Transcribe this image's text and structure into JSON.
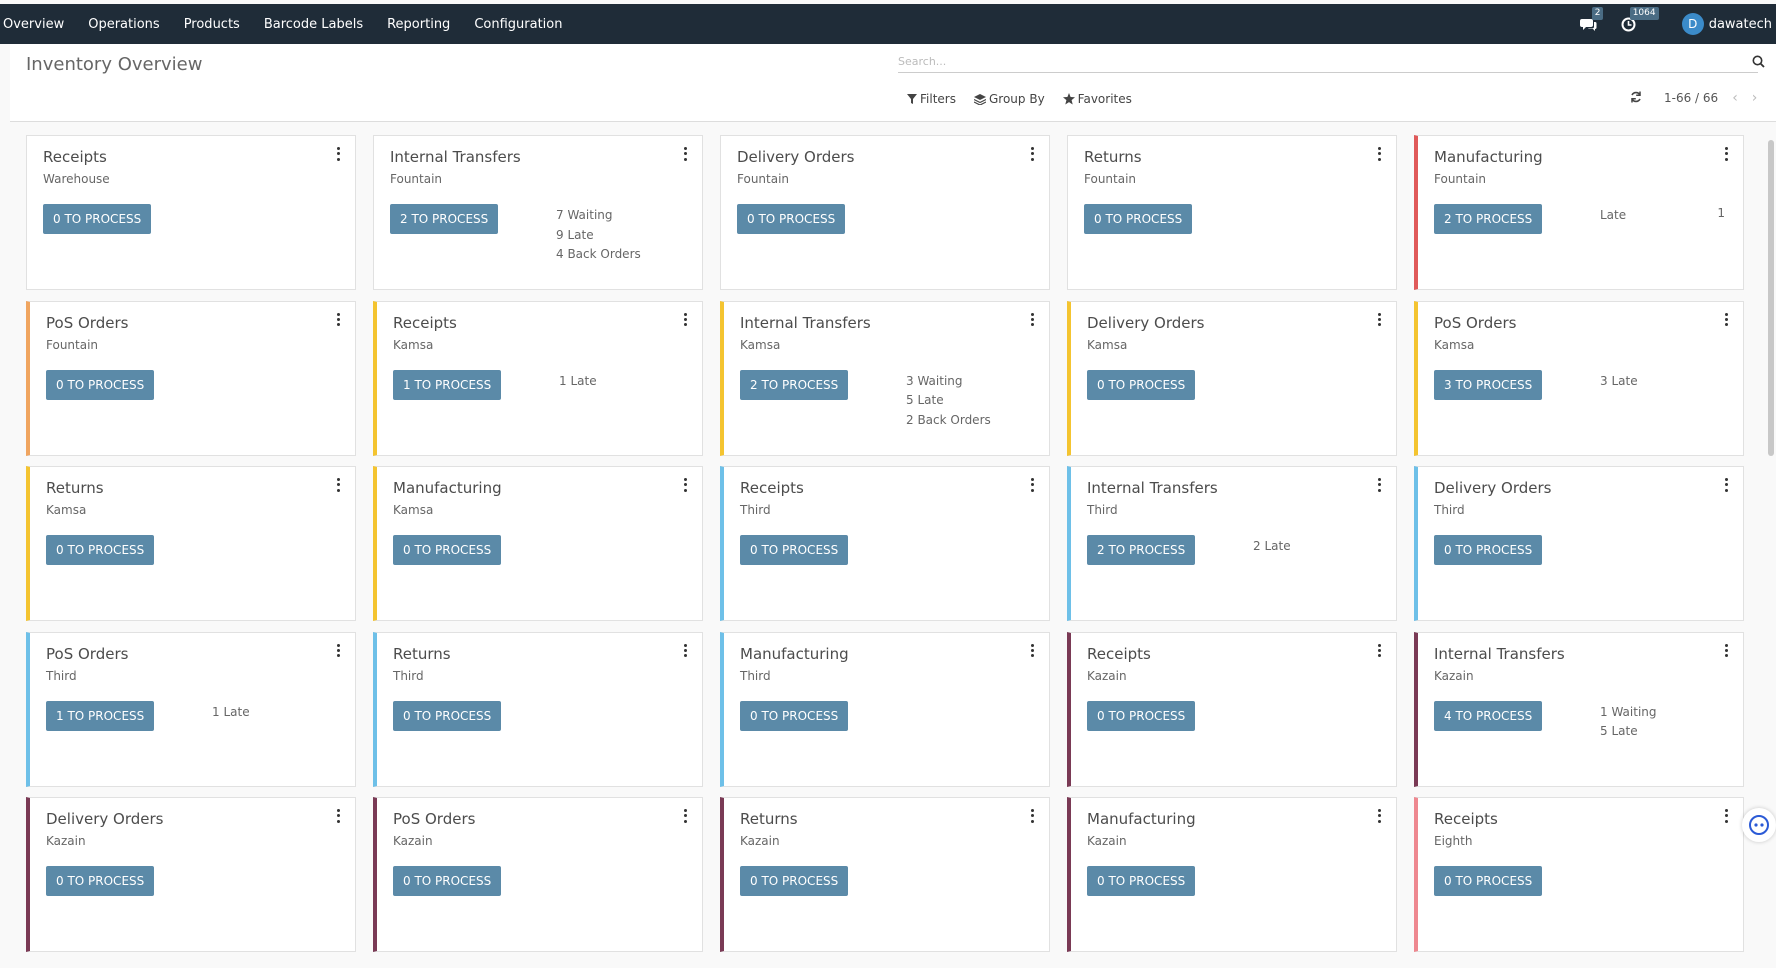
{
  "nav": {
    "menu": [
      "Overview",
      "Operations",
      "Products",
      "Barcode Labels",
      "Reporting",
      "Configuration"
    ],
    "messages_count": "2",
    "activities_count": "1064",
    "user_initial": "D",
    "username": "dawatech"
  },
  "control": {
    "page_title": "Inventory Overview",
    "search_placeholder": "Search...",
    "filters_label": "Filters",
    "groupby_label": "Group By",
    "favorites_label": "Favorites",
    "pager": "1-66 / 66"
  },
  "colors": {
    "topbar": "#1f2c38",
    "button": "#5b8aa8",
    "orange": "#f0a560",
    "yellow": "#f4c430",
    "light_blue": "#6ec0e8",
    "maroon": "#7a3a55",
    "red": "#e05a5a",
    "pink": "#ee8890"
  },
  "cards": [
    {
      "title": "Receipts",
      "warehouse": "Warehouse",
      "button": "0 TO PROCESS",
      "stats": [],
      "accent": ""
    },
    {
      "title": "Internal Transfers",
      "warehouse": "Fountain",
      "button": "2 TO PROCESS",
      "stats": [
        "7 Waiting",
        "9 Late",
        "4 Back Orders"
      ],
      "accent": ""
    },
    {
      "title": "Delivery Orders",
      "warehouse": "Fountain",
      "button": "0 TO PROCESS",
      "stats": [],
      "accent": ""
    },
    {
      "title": "Returns",
      "warehouse": "Fountain",
      "button": "0 TO PROCESS",
      "stats": [],
      "accent": ""
    },
    {
      "title": "Manufacturing",
      "warehouse": "Fountain",
      "button": "2 TO PROCESS",
      "stats": [
        "Late"
      ],
      "late_count": "1",
      "accent": "red"
    },
    {
      "title": "PoS Orders",
      "warehouse": "Fountain",
      "button": "0 TO PROCESS",
      "stats": [],
      "accent": "orange"
    },
    {
      "title": "Receipts",
      "warehouse": "Kamsa",
      "button": "1 TO PROCESS",
      "stats": [
        "1 Late"
      ],
      "accent": "yellow"
    },
    {
      "title": "Internal Transfers",
      "warehouse": "Kamsa",
      "button": "2 TO PROCESS",
      "stats": [
        "3 Waiting",
        "5 Late",
        "2 Back Orders"
      ],
      "accent": "yellow"
    },
    {
      "title": "Delivery Orders",
      "warehouse": "Kamsa",
      "button": "0 TO PROCESS",
      "stats": [],
      "accent": "yellow"
    },
    {
      "title": "PoS Orders",
      "warehouse": "Kamsa",
      "button": "3 TO PROCESS",
      "stats": [
        "3 Late"
      ],
      "accent": "yellow"
    },
    {
      "title": "Returns",
      "warehouse": "Kamsa",
      "button": "0 TO PROCESS",
      "stats": [],
      "accent": "yellow"
    },
    {
      "title": "Manufacturing",
      "warehouse": "Kamsa",
      "button": "0 TO PROCESS",
      "stats": [],
      "accent": "yellow"
    },
    {
      "title": "Receipts",
      "warehouse": "Third",
      "button": "0 TO PROCESS",
      "stats": [],
      "accent": "light_blue"
    },
    {
      "title": "Internal Transfers",
      "warehouse": "Third",
      "button": "2 TO PROCESS",
      "stats": [
        "2 Late"
      ],
      "accent": "light_blue"
    },
    {
      "title": "Delivery Orders",
      "warehouse": "Third",
      "button": "0 TO PROCESS",
      "stats": [],
      "accent": "light_blue"
    },
    {
      "title": "PoS Orders",
      "warehouse": "Third",
      "button": "1 TO PROCESS",
      "stats": [
        "1 Late"
      ],
      "accent": "light_blue"
    },
    {
      "title": "Returns",
      "warehouse": "Third",
      "button": "0 TO PROCESS",
      "stats": [],
      "accent": "light_blue"
    },
    {
      "title": "Manufacturing",
      "warehouse": "Third",
      "button": "0 TO PROCESS",
      "stats": [],
      "accent": "light_blue"
    },
    {
      "title": "Receipts",
      "warehouse": "Kazain",
      "button": "0 TO PROCESS",
      "stats": [],
      "accent": "maroon"
    },
    {
      "title": "Internal Transfers",
      "warehouse": "Kazain",
      "button": "4 TO PROCESS",
      "stats": [
        "1 Waiting",
        "5 Late"
      ],
      "accent": "maroon"
    },
    {
      "title": "Delivery Orders",
      "warehouse": "Kazain",
      "button": "0 TO PROCESS",
      "stats": [],
      "accent": "maroon"
    },
    {
      "title": "PoS Orders",
      "warehouse": "Kazain",
      "button": "0 TO PROCESS",
      "stats": [],
      "accent": "maroon"
    },
    {
      "title": "Returns",
      "warehouse": "Kazain",
      "button": "0 TO PROCESS",
      "stats": [],
      "accent": "maroon"
    },
    {
      "title": "Manufacturing",
      "warehouse": "Kazain",
      "button": "0 TO PROCESS",
      "stats": [],
      "accent": "maroon"
    },
    {
      "title": "Receipts",
      "warehouse": "Eighth",
      "button": "0 TO PROCESS",
      "stats": [],
      "accent": "pink"
    }
  ]
}
